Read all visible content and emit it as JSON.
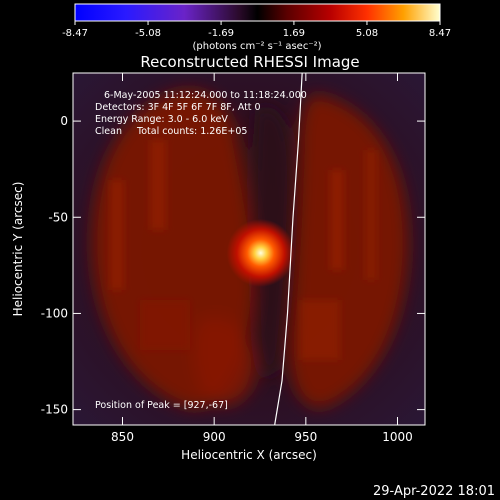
{
  "chart_data": {
    "type": "heatmap",
    "title": "Reconstructed RHESSI Image",
    "xlabel": "Heliocentric X (arcsec)",
    "ylabel": "Heliocentric Y (arcsec)",
    "xlim": [
      823,
      1015
    ],
    "ylim": [
      -158,
      25
    ],
    "xticks": [
      850,
      900,
      950,
      1000
    ],
    "yticks": [
      0,
      -50,
      -100,
      -150
    ],
    "colorbar": {
      "ticks": [
        "-8.47",
        "-5.08",
        "-1.69",
        "1.69",
        "5.08",
        "8.47"
      ],
      "min": -8.47,
      "max": 8.47,
      "units_label": "(photons cm⁻² s⁻¹ asec⁻²)"
    },
    "annotations": [
      "6-May-2005 11:12:24.000 to 11:18:24.000",
      "Detectors: 3F 4F 5F 6F 7F 8F, Att 0",
      "Energy Range: 3.0 - 6.0 keV",
      "Clean     Total counts: 1.26E+05"
    ],
    "peak_label": "Position of Peak = [927,-67]",
    "peak": {
      "x": 927,
      "y": -67
    },
    "limb_curve": [
      [
        948,
        25
      ],
      [
        946,
        -10
      ],
      [
        943,
        -50
      ],
      [
        940,
        -100
      ],
      [
        937,
        -135
      ],
      [
        933,
        -158
      ]
    ],
    "footer_timestamp": "29-Apr-2022 18:01"
  }
}
